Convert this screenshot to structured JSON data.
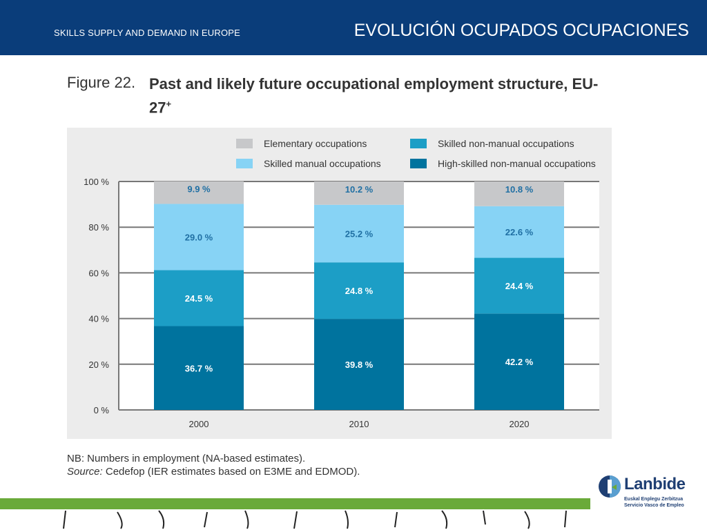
{
  "header": {
    "left_text": "SKILLS SUPPLY AND DEMAND IN EUROPE",
    "right_text": "EVOLUCIÓN OCUPADOS OCUPACIONES"
  },
  "figure": {
    "number": "Figure 22.",
    "title": "Past and likely future occupational employment structure, EU-27",
    "title_sup": "+"
  },
  "chart_data": {
    "type": "bar",
    "stacked": true,
    "categories": [
      "2000",
      "2010",
      "2020"
    ],
    "series": [
      {
        "name": "High-skilled non-manual occupations",
        "color": "#00739e",
        "values": [
          36.7,
          39.8,
          42.2
        ],
        "labels": [
          "36.7 %",
          "39.8 %",
          "42.2 %"
        ]
      },
      {
        "name": "Skilled non-manual occupations",
        "color": "#1c9ec6",
        "values": [
          24.5,
          24.8,
          24.4
        ],
        "labels": [
          "24.5 %",
          "24.8 %",
          "24.4 %"
        ]
      },
      {
        "name": "Skilled manual occupations",
        "color": "#87d3f5",
        "values": [
          29.0,
          25.2,
          22.6
        ],
        "labels": [
          "29.0 %",
          "25.2 %",
          "22.6 %"
        ]
      },
      {
        "name": "Elementary occupations",
        "color": "#c7c8ca",
        "values": [
          9.9,
          10.2,
          10.8
        ],
        "labels": [
          "9.9 %",
          "10.2 %",
          "10.8 %"
        ]
      }
    ],
    "legend_order": [
      3,
      1,
      2,
      0
    ],
    "y_ticks": [
      "0 %",
      "20 %",
      "40 %",
      "60 %",
      "80 %",
      "100 %"
    ],
    "ylim": [
      0,
      100
    ],
    "legend_position": "top"
  },
  "notes": {
    "nb": "NB: Numbers in employment (NA-based estimates).",
    "source_label": "Source:",
    "source_text": " Cedefop (IER estimates based on E3ME and EDMOD)."
  },
  "logo": {
    "name": "Lanbide",
    "sub1": "Euskal Enplegu Zerbitzua",
    "sub2": "Servicio Vasco de Empleo"
  }
}
